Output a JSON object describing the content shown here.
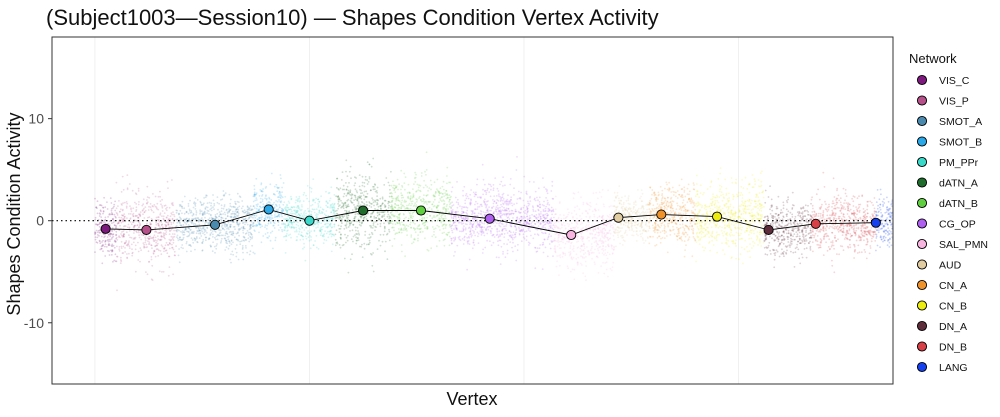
{
  "chart_data": {
    "type": "scatter",
    "title": "(Subject1003—Session10) — Shapes Condition Vertex Activity",
    "xlabel": "Vertex",
    "ylabel": "Shapes Condition Activity",
    "xlim": [
      -1000,
      18600
    ],
    "ylim": [
      -16,
      18
    ],
    "yticks": [
      -10,
      0,
      10
    ],
    "ytick_labels": [
      "-10",
      "0",
      "10"
    ],
    "vertical_gridlines": [
      0,
      5000,
      10000,
      15000
    ],
    "reference_line": {
      "y": 0,
      "style": "dotted"
    },
    "grid": true,
    "legend": {
      "title": "Network",
      "placement": "right"
    },
    "series": [
      {
        "name": "VIS_C",
        "color": "#7d1a7d",
        "x_range": [
          0,
          500
        ],
        "mean": -0.8,
        "spread": 1.4
      },
      {
        "name": "VIS_P",
        "color": "#b5508a",
        "x_range": [
          500,
          1900
        ],
        "mean": -0.9,
        "spread": 1.7
      },
      {
        "name": "SMOT_A",
        "color": "#4a8aae",
        "x_range": [
          1900,
          3700
        ],
        "mean": -0.4,
        "spread": 1.3
      },
      {
        "name": "SMOT_B",
        "color": "#2aa8e8",
        "x_range": [
          3700,
          4400
        ],
        "mean": 1.1,
        "spread": 1.3
      },
      {
        "name": "PM_PPr",
        "color": "#3ad8c8",
        "x_range": [
          4400,
          5600
        ],
        "mean": 0.0,
        "spread": 1.3
      },
      {
        "name": "dATN_A",
        "color": "#1f6b2b",
        "x_range": [
          5600,
          6900
        ],
        "mean": 1.0,
        "spread": 1.8
      },
      {
        "name": "dATN_B",
        "color": "#5fcf40",
        "x_range": [
          6900,
          8300
        ],
        "mean": 1.0,
        "spread": 1.6
      },
      {
        "name": "CG_OP",
        "color": "#b060f0",
        "x_range": [
          8300,
          10700
        ],
        "mean": 0.2,
        "spread": 1.6
      },
      {
        "name": "SAL_PMN",
        "color": "#f8b5e0",
        "x_range": [
          10700,
          12100
        ],
        "mean": -1.4,
        "spread": 1.6
      },
      {
        "name": "AUD",
        "color": "#e0cca0",
        "x_range": [
          12100,
          12900
        ],
        "mean": 0.3,
        "spread": 1.1
      },
      {
        "name": "CN_A",
        "color": "#f0922a",
        "x_range": [
          12900,
          14000
        ],
        "mean": 0.6,
        "spread": 1.4
      },
      {
        "name": "CN_B",
        "color": "#ecec10",
        "x_range": [
          14000,
          15600
        ],
        "mean": 0.4,
        "spread": 1.7
      },
      {
        "name": "DN_A",
        "color": "#5e2d3c",
        "x_range": [
          15600,
          16700
        ],
        "mean": -0.9,
        "spread": 1.3
      },
      {
        "name": "DN_B",
        "color": "#d84048",
        "x_range": [
          16700,
          18200
        ],
        "mean": -0.3,
        "spread": 1.4
      },
      {
        "name": "LANG",
        "color": "#1440f0",
        "x_range": [
          18200,
          19100
        ],
        "mean": -0.2,
        "spread": 1.2
      }
    ],
    "mean_points": [
      {
        "network": "VIS_C",
        "x": 250,
        "y": -0.8
      },
      {
        "network": "VIS_P",
        "x": 1200,
        "y": -0.9
      },
      {
        "network": "SMOT_A",
        "x": 2800,
        "y": -0.4
      },
      {
        "network": "SMOT_B",
        "x": 4050,
        "y": 1.1
      },
      {
        "network": "PM_PPr",
        "x": 5000,
        "y": 0.0
      },
      {
        "network": "dATN_A",
        "x": 6250,
        "y": 1.0
      },
      {
        "network": "dATN_B",
        "x": 7600,
        "y": 1.0
      },
      {
        "network": "CG_OP",
        "x": 9200,
        "y": 0.2
      },
      {
        "network": "SAL_PMN",
        "x": 11100,
        "y": -1.4
      },
      {
        "network": "AUD",
        "x": 12200,
        "y": 0.3
      },
      {
        "network": "CN_A",
        "x": 13200,
        "y": 0.6
      },
      {
        "network": "CN_B",
        "x": 14500,
        "y": 0.4
      },
      {
        "network": "DN_A",
        "x": 15700,
        "y": -0.9
      },
      {
        "network": "DN_B",
        "x": 16800,
        "y": -0.3
      },
      {
        "network": "LANG",
        "x": 18200,
        "y": -0.2
      }
    ]
  }
}
